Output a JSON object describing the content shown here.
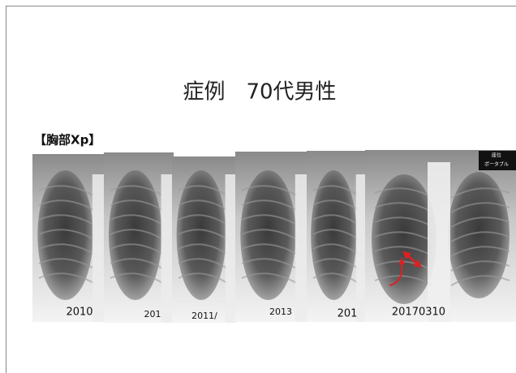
{
  "title": "症例　70代男性",
  "section_label": "【胸部Xp】",
  "images": [
    {
      "label": "2010"
    },
    {
      "label": "201"
    },
    {
      "label": "2011/"
    },
    {
      "label": "2013"
    },
    {
      "label": "201"
    },
    {
      "label": "20170310"
    }
  ],
  "overlay_labels": [
    "座位",
    "ポータブル"
  ]
}
